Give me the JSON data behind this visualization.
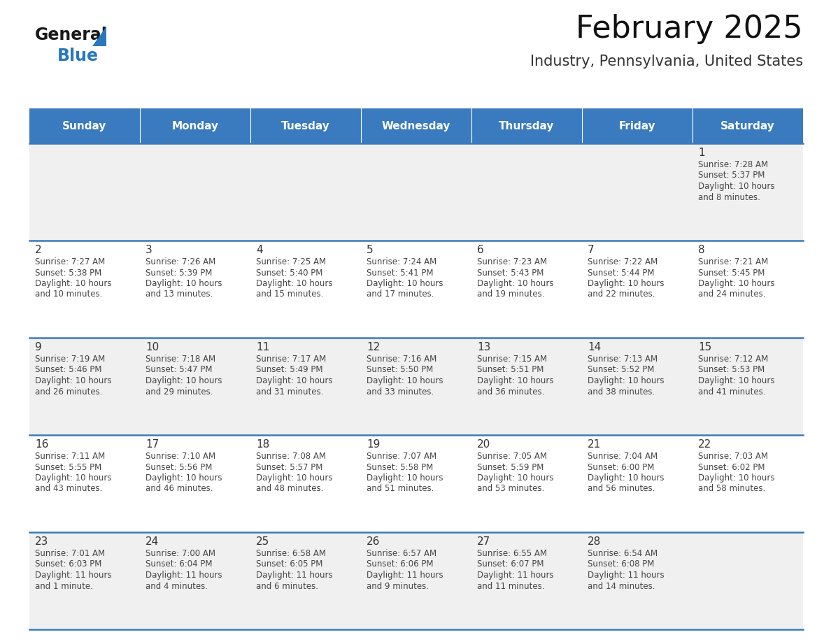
{
  "title": "February 2025",
  "subtitle": "Industry, Pennsylvania, United States",
  "days_of_week": [
    "Sunday",
    "Monday",
    "Tuesday",
    "Wednesday",
    "Thursday",
    "Friday",
    "Saturday"
  ],
  "header_bg": "#3a7abf",
  "header_text": "#ffffff",
  "cell_bg_light": "#f0f0f0",
  "cell_bg_white": "#ffffff",
  "day_number_color": "#333333",
  "info_text_color": "#444444",
  "border_color": "#3a7abf",
  "calendar_data": [
    {
      "day": 1,
      "col": 6,
      "row": 0,
      "sunrise": "7:28 AM",
      "sunset": "5:37 PM",
      "daylight_line1": "Daylight: 10 hours",
      "daylight_line2": "and 8 minutes."
    },
    {
      "day": 2,
      "col": 0,
      "row": 1,
      "sunrise": "7:27 AM",
      "sunset": "5:38 PM",
      "daylight_line1": "Daylight: 10 hours",
      "daylight_line2": "and 10 minutes."
    },
    {
      "day": 3,
      "col": 1,
      "row": 1,
      "sunrise": "7:26 AM",
      "sunset": "5:39 PM",
      "daylight_line1": "Daylight: 10 hours",
      "daylight_line2": "and 13 minutes."
    },
    {
      "day": 4,
      "col": 2,
      "row": 1,
      "sunrise": "7:25 AM",
      "sunset": "5:40 PM",
      "daylight_line1": "Daylight: 10 hours",
      "daylight_line2": "and 15 minutes."
    },
    {
      "day": 5,
      "col": 3,
      "row": 1,
      "sunrise": "7:24 AM",
      "sunset": "5:41 PM",
      "daylight_line1": "Daylight: 10 hours",
      "daylight_line2": "and 17 minutes."
    },
    {
      "day": 6,
      "col": 4,
      "row": 1,
      "sunrise": "7:23 AM",
      "sunset": "5:43 PM",
      "daylight_line1": "Daylight: 10 hours",
      "daylight_line2": "and 19 minutes."
    },
    {
      "day": 7,
      "col": 5,
      "row": 1,
      "sunrise": "7:22 AM",
      "sunset": "5:44 PM",
      "daylight_line1": "Daylight: 10 hours",
      "daylight_line2": "and 22 minutes."
    },
    {
      "day": 8,
      "col": 6,
      "row": 1,
      "sunrise": "7:21 AM",
      "sunset": "5:45 PM",
      "daylight_line1": "Daylight: 10 hours",
      "daylight_line2": "and 24 minutes."
    },
    {
      "day": 9,
      "col": 0,
      "row": 2,
      "sunrise": "7:19 AM",
      "sunset": "5:46 PM",
      "daylight_line1": "Daylight: 10 hours",
      "daylight_line2": "and 26 minutes."
    },
    {
      "day": 10,
      "col": 1,
      "row": 2,
      "sunrise": "7:18 AM",
      "sunset": "5:47 PM",
      "daylight_line1": "Daylight: 10 hours",
      "daylight_line2": "and 29 minutes."
    },
    {
      "day": 11,
      "col": 2,
      "row": 2,
      "sunrise": "7:17 AM",
      "sunset": "5:49 PM",
      "daylight_line1": "Daylight: 10 hours",
      "daylight_line2": "and 31 minutes."
    },
    {
      "day": 12,
      "col": 3,
      "row": 2,
      "sunrise": "7:16 AM",
      "sunset": "5:50 PM",
      "daylight_line1": "Daylight: 10 hours",
      "daylight_line2": "and 33 minutes."
    },
    {
      "day": 13,
      "col": 4,
      "row": 2,
      "sunrise": "7:15 AM",
      "sunset": "5:51 PM",
      "daylight_line1": "Daylight: 10 hours",
      "daylight_line2": "and 36 minutes."
    },
    {
      "day": 14,
      "col": 5,
      "row": 2,
      "sunrise": "7:13 AM",
      "sunset": "5:52 PM",
      "daylight_line1": "Daylight: 10 hours",
      "daylight_line2": "and 38 minutes."
    },
    {
      "day": 15,
      "col": 6,
      "row": 2,
      "sunrise": "7:12 AM",
      "sunset": "5:53 PM",
      "daylight_line1": "Daylight: 10 hours",
      "daylight_line2": "and 41 minutes."
    },
    {
      "day": 16,
      "col": 0,
      "row": 3,
      "sunrise": "7:11 AM",
      "sunset": "5:55 PM",
      "daylight_line1": "Daylight: 10 hours",
      "daylight_line2": "and 43 minutes."
    },
    {
      "day": 17,
      "col": 1,
      "row": 3,
      "sunrise": "7:10 AM",
      "sunset": "5:56 PM",
      "daylight_line1": "Daylight: 10 hours",
      "daylight_line2": "and 46 minutes."
    },
    {
      "day": 18,
      "col": 2,
      "row": 3,
      "sunrise": "7:08 AM",
      "sunset": "5:57 PM",
      "daylight_line1": "Daylight: 10 hours",
      "daylight_line2": "and 48 minutes."
    },
    {
      "day": 19,
      "col": 3,
      "row": 3,
      "sunrise": "7:07 AM",
      "sunset": "5:58 PM",
      "daylight_line1": "Daylight: 10 hours",
      "daylight_line2": "and 51 minutes."
    },
    {
      "day": 20,
      "col": 4,
      "row": 3,
      "sunrise": "7:05 AM",
      "sunset": "5:59 PM",
      "daylight_line1": "Daylight: 10 hours",
      "daylight_line2": "and 53 minutes."
    },
    {
      "day": 21,
      "col": 5,
      "row": 3,
      "sunrise": "7:04 AM",
      "sunset": "6:00 PM",
      "daylight_line1": "Daylight: 10 hours",
      "daylight_line2": "and 56 minutes."
    },
    {
      "day": 22,
      "col": 6,
      "row": 3,
      "sunrise": "7:03 AM",
      "sunset": "6:02 PM",
      "daylight_line1": "Daylight: 10 hours",
      "daylight_line2": "and 58 minutes."
    },
    {
      "day": 23,
      "col": 0,
      "row": 4,
      "sunrise": "7:01 AM",
      "sunset": "6:03 PM",
      "daylight_line1": "Daylight: 11 hours",
      "daylight_line2": "and 1 minute."
    },
    {
      "day": 24,
      "col": 1,
      "row": 4,
      "sunrise": "7:00 AM",
      "sunset": "6:04 PM",
      "daylight_line1": "Daylight: 11 hours",
      "daylight_line2": "and 4 minutes."
    },
    {
      "day": 25,
      "col": 2,
      "row": 4,
      "sunrise": "6:58 AM",
      "sunset": "6:05 PM",
      "daylight_line1": "Daylight: 11 hours",
      "daylight_line2": "and 6 minutes."
    },
    {
      "day": 26,
      "col": 3,
      "row": 4,
      "sunrise": "6:57 AM",
      "sunset": "6:06 PM",
      "daylight_line1": "Daylight: 11 hours",
      "daylight_line2": "and 9 minutes."
    },
    {
      "day": 27,
      "col": 4,
      "row": 4,
      "sunrise": "6:55 AM",
      "sunset": "6:07 PM",
      "daylight_line1": "Daylight: 11 hours",
      "daylight_line2": "and 11 minutes."
    },
    {
      "day": 28,
      "col": 5,
      "row": 4,
      "sunrise": "6:54 AM",
      "sunset": "6:08 PM",
      "daylight_line1": "Daylight: 11 hours",
      "daylight_line2": "and 14 minutes."
    }
  ],
  "logo_text_general": "General",
  "logo_text_blue": "Blue",
  "logo_color_general": "#1a1a1a",
  "logo_color_blue": "#2878be",
  "logo_triangle_color": "#2878be",
  "title_fontsize": 32,
  "subtitle_fontsize": 15,
  "dow_fontsize": 11,
  "day_num_fontsize": 11,
  "info_fontsize": 8.5
}
